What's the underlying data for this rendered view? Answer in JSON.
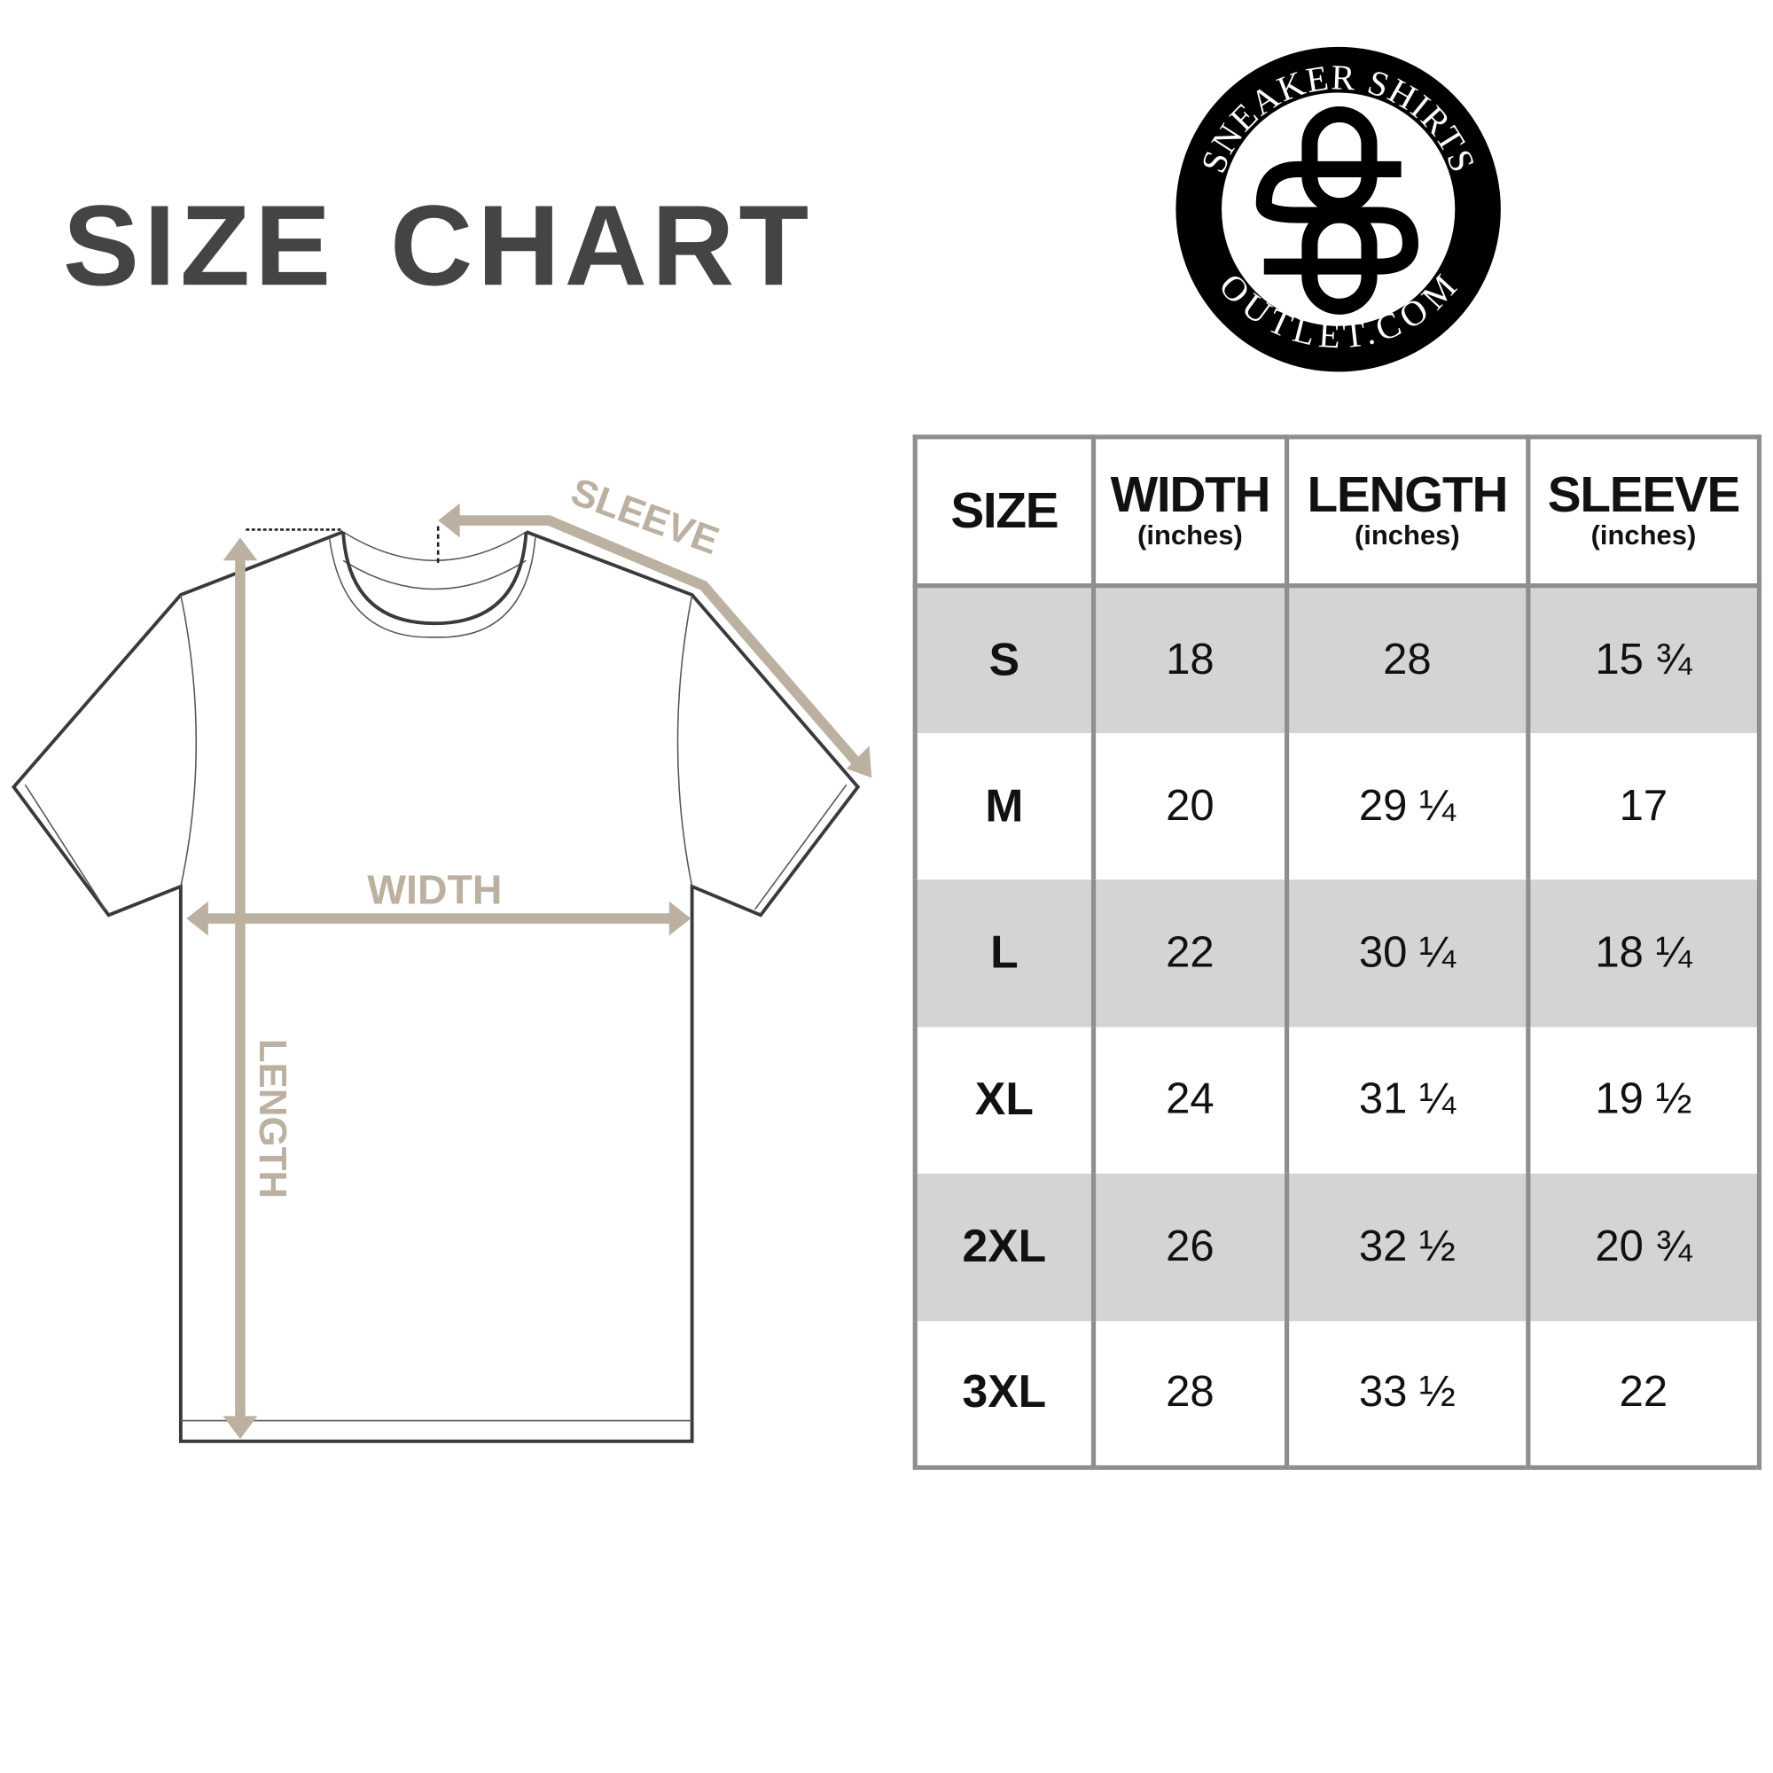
{
  "title": "SIZE CHART",
  "logo": {
    "top_text": "SNEAKER SHIRTS",
    "bottom_text": "OUTLET.COM",
    "monogram": "SO"
  },
  "diagram": {
    "sleeve_label": "SLEEVE",
    "width_label": "WIDTH",
    "length_label": "LENGTH",
    "accent_color": "#bcb0a1"
  },
  "table": {
    "headers": [
      {
        "label": "SIZE",
        "unit": ""
      },
      {
        "label": "WIDTH",
        "unit": "(inches)"
      },
      {
        "label": "LENGTH",
        "unit": "(inches)"
      },
      {
        "label": "SLEEVE",
        "unit": "(inches)"
      }
    ],
    "rows": [
      [
        "S",
        "18",
        "28",
        "15 ¾"
      ],
      [
        "M",
        "20",
        "29 ¼",
        "17"
      ],
      [
        "L",
        "22",
        "30 ¼",
        "18 ¼"
      ],
      [
        "XL",
        "24",
        "31 ¼",
        "19 ½"
      ],
      [
        "2XL",
        "26",
        "32 ½",
        "20 ¾"
      ],
      [
        "3XL",
        "28",
        "33 ½",
        "22"
      ]
    ],
    "stripe_color": "#d4d4d4",
    "border_color": "#8e8e8e"
  }
}
